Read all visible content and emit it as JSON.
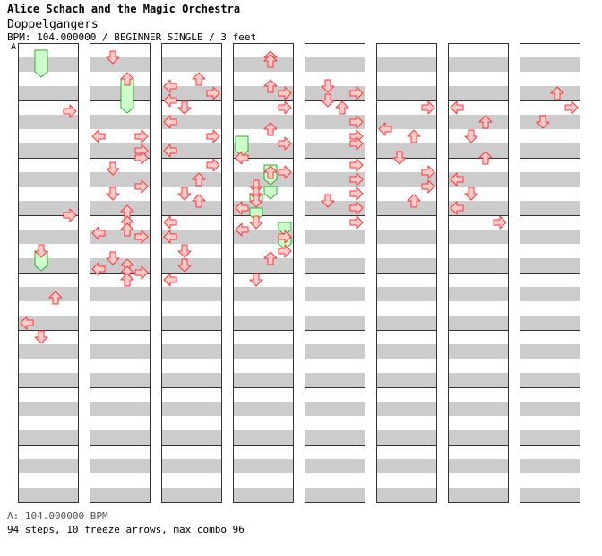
{
  "header": {
    "artist": "Alice Schach and the Magic Orchestra",
    "song": "Doppelgangers",
    "info": "BPM: 104.000000 / BEGINNER SINGLE / 3 feet"
  },
  "bpm_marker": "A",
  "footer": {
    "bpm_legend": "A: 104.000000 BPM",
    "summary": "94 steps, 10 freeze arrows, max combo 96"
  },
  "colors": {
    "stripe": "#cccccc",
    "arrow_fill": "#ffcccc",
    "arrow_stroke": "#ff3333",
    "freeze_fill": "#ccffcc",
    "freeze_stroke": "#33aa33"
  },
  "notes": [
    {
      "col": 0,
      "t": "17",
      "k": "R"
    },
    {
      "col": 0,
      "t": "46",
      "k": "R"
    },
    {
      "col": 0,
      "t": "56",
      "k": "D"
    },
    {
      "col": 0,
      "t": "69",
      "k": "U"
    },
    {
      "col": 0,
      "t": "76",
      "k": "L"
    },
    {
      "col": 0,
      "t": "80",
      "k": "D"
    },
    {
      "col": 1,
      "t": "2",
      "k": "D"
    },
    {
      "col": 1,
      "t": "8",
      "k": "U"
    },
    {
      "col": 1,
      "t": "24",
      "k": "L"
    },
    {
      "col": 1,
      "t": "24",
      "k": "R"
    },
    {
      "col": 1,
      "t": "28",
      "k": "R"
    },
    {
      "col": 1,
      "t": "30",
      "k": "R"
    },
    {
      "col": 1,
      "t": "33",
      "k": "D"
    },
    {
      "col": 1,
      "t": "38",
      "k": "R"
    },
    {
      "col": 1,
      "t": "40",
      "k": "D"
    },
    {
      "col": 1,
      "t": "45",
      "k": "U"
    },
    {
      "col": 1,
      "t": "48",
      "k": "U"
    },
    {
      "col": 1,
      "t": "50",
      "k": "U"
    },
    {
      "col": 1,
      "t": "51",
      "k": "L"
    },
    {
      "col": 1,
      "t": "52",
      "k": "R"
    },
    {
      "col": 1,
      "t": "58",
      "k": "D"
    },
    {
      "col": 1,
      "t": "60",
      "k": "U"
    },
    {
      "col": 1,
      "t": "61",
      "k": "L"
    },
    {
      "col": 1,
      "t": "62",
      "k": "U"
    },
    {
      "col": 1,
      "t": "62",
      "k": "R"
    },
    {
      "col": 1,
      "t": "64",
      "k": "U"
    },
    {
      "col": 2,
      "t": "8",
      "k": "U"
    },
    {
      "col": 2,
      "t": "10",
      "k": "L"
    },
    {
      "col": 2,
      "t": "12",
      "k": "R"
    },
    {
      "col": 2,
      "t": "14",
      "k": "L"
    },
    {
      "col": 2,
      "t": "16",
      "k": "D"
    },
    {
      "col": 2,
      "t": "20",
      "k": "L"
    },
    {
      "col": 2,
      "t": "24",
      "k": "R"
    },
    {
      "col": 2,
      "t": "28",
      "k": "L"
    },
    {
      "col": 2,
      "t": "32",
      "k": "R"
    },
    {
      "col": 2,
      "t": "36",
      "k": "U"
    },
    {
      "col": 2,
      "t": "40",
      "k": "D"
    },
    {
      "col": 2,
      "t": "42",
      "k": "U"
    },
    {
      "col": 2,
      "t": "48",
      "k": "L"
    },
    {
      "col": 2,
      "t": "52",
      "k": "L"
    },
    {
      "col": 2,
      "t": "56",
      "k": "D"
    },
    {
      "col": 2,
      "t": "60",
      "k": "D"
    },
    {
      "col": 2,
      "t": "64",
      "k": "L"
    },
    {
      "col": 3,
      "t": "2",
      "k": "U"
    },
    {
      "col": 3,
      "t": "3",
      "k": "U"
    },
    {
      "col": 3,
      "t": "10",
      "k": "U"
    },
    {
      "col": 3,
      "t": "12",
      "k": "R"
    },
    {
      "col": 3,
      "t": "16",
      "k": "R"
    },
    {
      "col": 3,
      "t": "22",
      "k": "U"
    },
    {
      "col": 3,
      "t": "26",
      "k": "R"
    },
    {
      "col": 3,
      "t": "30",
      "k": "L"
    },
    {
      "col": 3,
      "t": "34",
      "k": "U"
    },
    {
      "col": 3,
      "t": "34",
      "k": "R"
    },
    {
      "col": 3,
      "t": "38",
      "k": "D"
    },
    {
      "col": 3,
      "t": "40",
      "k": "D"
    },
    {
      "col": 3,
      "t": "42",
      "k": "D"
    },
    {
      "col": 3,
      "t": "44",
      "k": "L"
    },
    {
      "col": 3,
      "t": "48",
      "k": "D"
    },
    {
      "col": 3,
      "t": "50",
      "k": "L"
    },
    {
      "col": 3,
      "t": "52",
      "k": "R"
    },
    {
      "col": 3,
      "t": "56",
      "k": "R"
    },
    {
      "col": 3,
      "t": "58",
      "k": "U"
    },
    {
      "col": 3,
      "t": "64",
      "k": "D"
    },
    {
      "col": 4,
      "t": "10",
      "k": "D"
    },
    {
      "col": 4,
      "t": "12",
      "k": "R"
    },
    {
      "col": 4,
      "t": "14",
      "k": "D"
    },
    {
      "col": 4,
      "t": "16",
      "k": "U"
    },
    {
      "col": 4,
      "t": "20",
      "k": "R"
    },
    {
      "col": 4,
      "t": "24",
      "k": "R"
    },
    {
      "col": 4,
      "t": "26",
      "k": "R"
    },
    {
      "col": 4,
      "t": "32",
      "k": "R"
    },
    {
      "col": 4,
      "t": "36",
      "k": "R"
    },
    {
      "col": 4,
      "t": "40",
      "k": "R"
    },
    {
      "col": 4,
      "t": "42",
      "k": "D"
    },
    {
      "col": 4,
      "t": "44",
      "k": "R"
    },
    {
      "col": 4,
      "t": "48",
      "k": "R"
    },
    {
      "col": 5,
      "t": "16",
      "k": "R"
    },
    {
      "col": 5,
      "t": "22",
      "k": "L"
    },
    {
      "col": 5,
      "t": "24",
      "k": "U"
    },
    {
      "col": 5,
      "t": "30",
      "k": "D"
    },
    {
      "col": 5,
      "t": "34",
      "k": "R"
    },
    {
      "col": 5,
      "t": "38",
      "k": "R"
    },
    {
      "col": 5,
      "t": "42",
      "k": "U"
    },
    {
      "col": 6,
      "t": "16",
      "k": "L"
    },
    {
      "col": 6,
      "t": "20",
      "k": "U"
    },
    {
      "col": 6,
      "t": "24",
      "k": "D"
    },
    {
      "col": 6,
      "t": "30",
      "k": "U"
    },
    {
      "col": 6,
      "t": "36",
      "k": "L"
    },
    {
      "col": 6,
      "t": "40",
      "k": "D"
    },
    {
      "col": 6,
      "t": "44",
      "k": "L"
    },
    {
      "col": 6,
      "t": "48",
      "k": "R"
    },
    {
      "col": 7,
      "t": "12",
      "k": "U"
    },
    {
      "col": 7,
      "t": "16",
      "k": "R"
    },
    {
      "col": 7,
      "t": "20",
      "k": "D"
    }
  ]
}
